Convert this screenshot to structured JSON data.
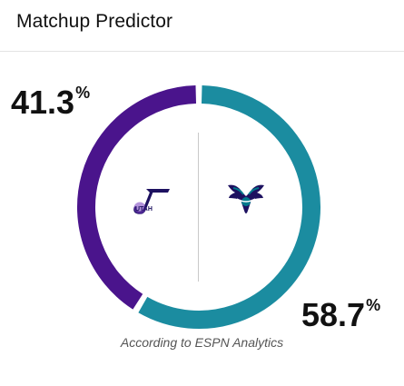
{
  "widget": {
    "title": "Matchup Predictor",
    "caption": "According to ESPN Analytics"
  },
  "teams": {
    "away": {
      "name": "Utah Jazz",
      "logo_icon": "jazz-logo-icon",
      "probability": 41.3,
      "probability_text": "41.3",
      "color": "#4a148c"
    },
    "home": {
      "name": "Charlotte Hornets",
      "logo_icon": "hornets-logo-icon",
      "probability": 58.7,
      "probability_text": "58.7",
      "color": "#1b8ca0"
    }
  },
  "percent_symbol": "%"
}
